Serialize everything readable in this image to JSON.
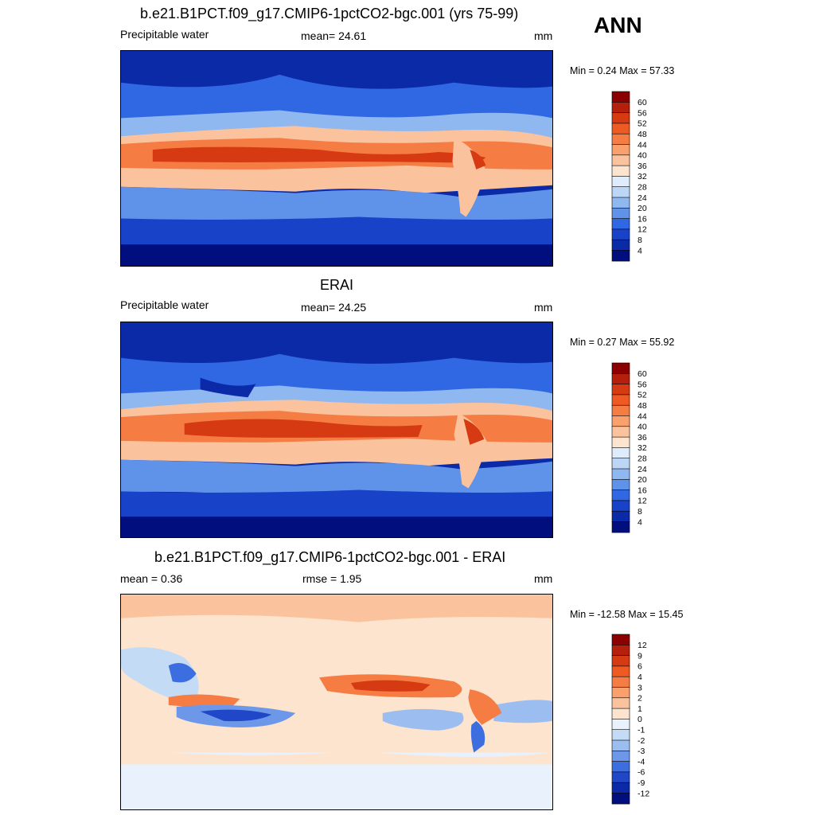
{
  "header": {
    "season": "ANN"
  },
  "panels": [
    {
      "title": "b.e21.B1PCT.f09_g17.CMIP6-1pctCO2-bgc.001 (yrs 75-99)",
      "left_label": "Precipitable water",
      "center_label": "mean=  24.61",
      "units": "mm",
      "minmax": "Min =   0.24 Max =  57.33",
      "colorbar": {
        "levels": [
          "60",
          "56",
          "52",
          "48",
          "44",
          "40",
          "36",
          "32",
          "28",
          "24",
          "20",
          "16",
          "12",
          "8",
          "4"
        ],
        "colors": [
          "#8b0000",
          "#b4200c",
          "#d63a12",
          "#ee5a22",
          "#f57c43",
          "#f9a06c",
          "#fbc39d",
          "#fde4cf",
          "#deecfb",
          "#bcd7f6",
          "#8fb7f0",
          "#5f93ea",
          "#3067e2",
          "#1842c8",
          "#0b2aa8",
          "#000e7e"
        ]
      }
    },
    {
      "title": "ERAI",
      "left_label": "Precipitable water",
      "center_label": "mean=  24.25",
      "units": "mm",
      "minmax": "Min =   0.27 Max =  55.92",
      "colorbar": {
        "levels": [
          "60",
          "56",
          "52",
          "48",
          "44",
          "40",
          "36",
          "32",
          "28",
          "24",
          "20",
          "16",
          "12",
          "8",
          "4"
        ],
        "colors": [
          "#8b0000",
          "#b4200c",
          "#d63a12",
          "#ee5a22",
          "#f57c43",
          "#f9a06c",
          "#fbc39d",
          "#fde4cf",
          "#deecfb",
          "#bcd7f6",
          "#8fb7f0",
          "#5f93ea",
          "#3067e2",
          "#1842c8",
          "#0b2aa8",
          "#000e7e"
        ]
      }
    },
    {
      "title": "b.e21.B1PCT.f09_g17.CMIP6-1pctCO2-bgc.001 - ERAI",
      "left_label": "mean =   0.36",
      "center_label": "rmse =   1.95",
      "units": "mm",
      "minmax": "Min = -12.58 Max =  15.45",
      "colorbar": {
        "levels": [
          "12",
          "9",
          "6",
          "4",
          "3",
          "2",
          "1",
          "0",
          "-1",
          "-2",
          "-3",
          "-4",
          "-6",
          "-9",
          "-12"
        ],
        "colors": [
          "#8b0000",
          "#b4200c",
          "#d63a12",
          "#ee5a22",
          "#f57c43",
          "#f9a06c",
          "#fbc39d",
          "#fde4cf",
          "#e8f1fc",
          "#c4dbf6",
          "#9bbdf0",
          "#6d98e9",
          "#3d6ee0",
          "#1f47c8",
          "#0b2aa8",
          "#000e7e"
        ]
      }
    }
  ]
}
